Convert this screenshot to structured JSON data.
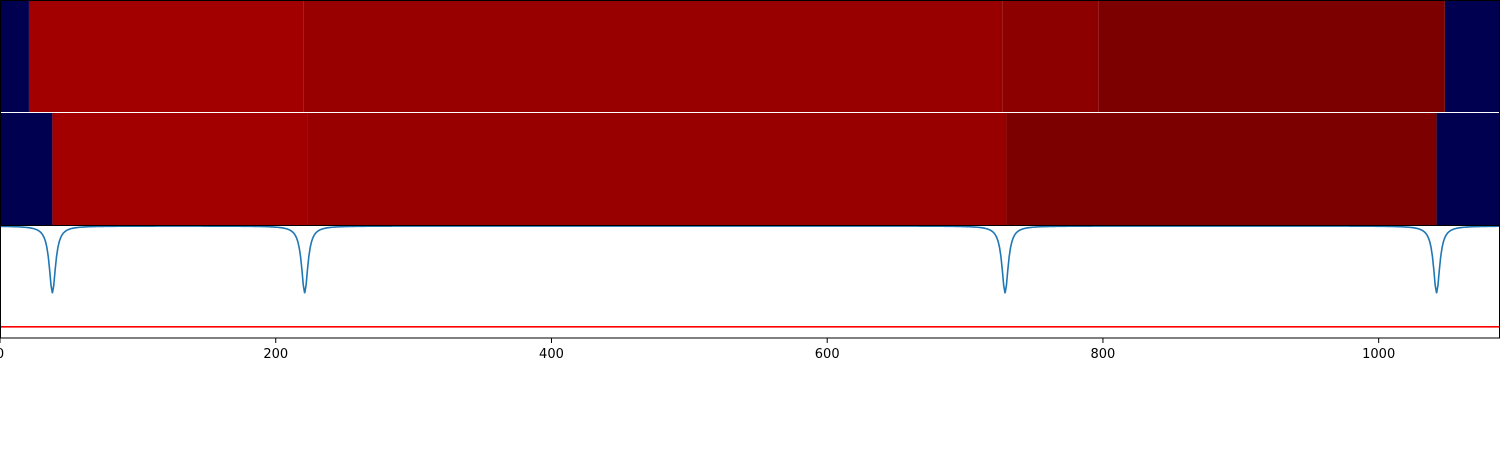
{
  "chart_data": {
    "type": "heatmap",
    "xlim": [
      0,
      1088
    ],
    "ylim": [
      0,
      1
    ],
    "x_ticks": [
      0,
      200,
      400,
      600,
      800,
      1000
    ],
    "x_tick_labels": [
      "0",
      "200",
      "400",
      "600",
      "800",
      "1000"
    ],
    "grid": false,
    "colors": {
      "segment_low": "#000050",
      "segment_a": "#a20000",
      "segment_b": "#980000",
      "segment_c": "#8c0000",
      "segment_d": "#7c0000",
      "signal_line": "#1f77b4",
      "threshold_line": "#ff0000",
      "separator": "#ffffff",
      "axes": "#000000"
    },
    "rows": [
      {
        "segments": [
          {
            "start": 0,
            "end": 21,
            "color_key": "segment_low"
          },
          {
            "start": 21,
            "end": 220,
            "color_key": "segment_a"
          },
          {
            "start": 220,
            "end": 727,
            "color_key": "segment_b"
          },
          {
            "start": 727,
            "end": 797,
            "color_key": "segment_c"
          },
          {
            "start": 797,
            "end": 1048,
            "color_key": "segment_d"
          },
          {
            "start": 1048,
            "end": 1088,
            "color_key": "segment_low"
          }
        ]
      },
      {
        "segments": [
          {
            "start": 0,
            "end": 38,
            "color_key": "segment_low"
          },
          {
            "start": 38,
            "end": 223,
            "color_key": "segment_a"
          },
          {
            "start": 223,
            "end": 730,
            "color_key": "segment_b"
          },
          {
            "start": 730,
            "end": 1042,
            "color_key": "segment_d"
          },
          {
            "start": 1042,
            "end": 1088,
            "color_key": "segment_low"
          }
        ]
      }
    ],
    "signal": {
      "baseline": 1.0,
      "dips": [
        {
          "x": 38,
          "depth": 0.6
        },
        {
          "x": 221,
          "depth": 0.6
        },
        {
          "x": 729,
          "depth": 0.6
        },
        {
          "x": 1042,
          "depth": 0.6
        }
      ],
      "dip_width": 12
    },
    "threshold": 0.1
  }
}
